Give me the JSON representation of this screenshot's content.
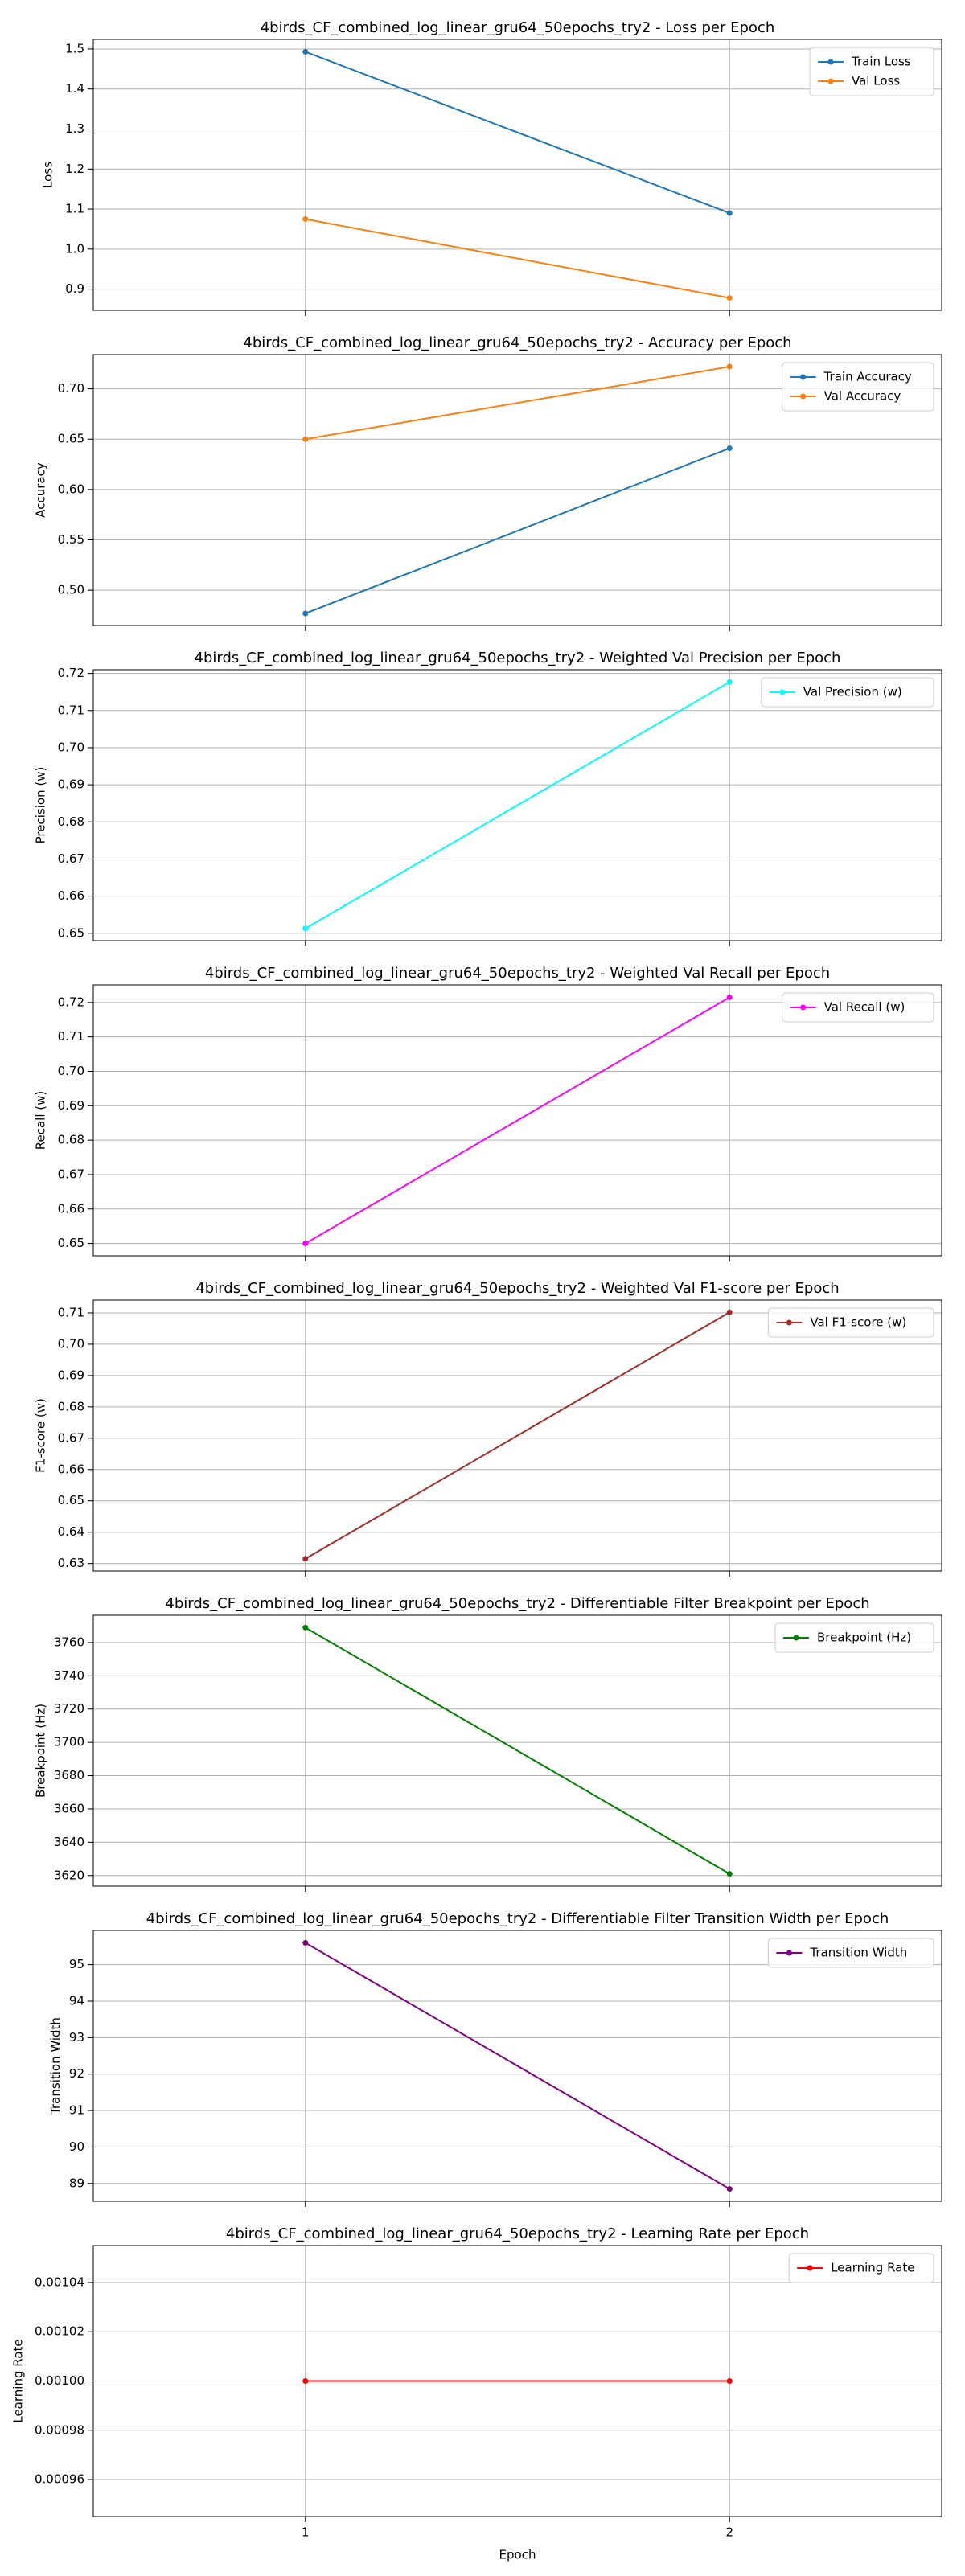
{
  "chart_data": [
    {
      "type": "line",
      "title": "4birds_CF_combined_log_linear_gru64_50epochs_try2 - Loss per Epoch",
      "ylabel": "Loss",
      "x": [
        1,
        2
      ],
      "xlim": [
        0.5,
        2.5
      ],
      "xticks": [
        1,
        2
      ],
      "series": [
        {
          "name": "Train Loss",
          "color": "#1f77b4",
          "values": [
            1.493,
            1.09
          ]
        },
        {
          "name": "Val Loss",
          "color": "#ff7f0e",
          "values": [
            1.075,
            0.878
          ]
        }
      ],
      "ylim": [
        0.847,
        1.524
      ],
      "yticks": [
        0.9,
        {
          "value": 1,
          "label": "1.0"
        },
        1.1,
        1.2,
        1.3,
        1.4,
        1.5
      ],
      "grid": true,
      "legend": "upper right"
    },
    {
      "type": "line",
      "title": "4birds_CF_combined_log_linear_gru64_50epochs_try2 - Accuracy per Epoch",
      "ylabel": "Accuracy",
      "x": [
        1,
        2
      ],
      "xlim": [
        0.5,
        2.5
      ],
      "xticks": [
        1,
        2
      ],
      "series": [
        {
          "name": "Train Accuracy",
          "color": "#1f77b4",
          "values": [
            0.477,
            0.641
          ]
        },
        {
          "name": "Val Accuracy",
          "color": "#ff7f0e",
          "values": [
            0.65,
            0.722
          ]
        }
      ],
      "ylim": [
        0.465,
        0.734
      ],
      "yticks": [
        {
          "value": 0.5,
          "label": "0.50"
        },
        0.55,
        {
          "value": 0.6,
          "label": "0.60"
        },
        0.65,
        {
          "value": 0.7,
          "label": "0.70"
        }
      ],
      "grid": true,
      "legend": "upper right"
    },
    {
      "type": "line",
      "title": "4birds_CF_combined_log_linear_gru64_50epochs_try2 - Weighted Val Precision per Epoch",
      "ylabel": "Precision (w)",
      "x": [
        1,
        2
      ],
      "xlim": [
        0.5,
        2.5
      ],
      "xticks": [
        1,
        2
      ],
      "series": [
        {
          "name": "Val Precision (w)",
          "color": "#00ffff",
          "values": [
            0.6513,
            0.7177
          ]
        }
      ],
      "ylim": [
        0.648,
        0.721
      ],
      "yticks": [
        0.65,
        0.66,
        0.67,
        0.68,
        0.69,
        {
          "value": 0.7,
          "label": "0.70"
        },
        0.71,
        0.72
      ],
      "grid": true,
      "legend": "upper right"
    },
    {
      "type": "line",
      "title": "4birds_CF_combined_log_linear_gru64_50epochs_try2 - Weighted Val Recall per Epoch",
      "ylabel": "Recall (w)",
      "x": [
        1,
        2
      ],
      "xlim": [
        0.5,
        2.5
      ],
      "xticks": [
        1,
        2
      ],
      "series": [
        {
          "name": "Val Recall (w)",
          "color": "#ff00ff",
          "values": [
            0.65,
            0.7215
          ]
        }
      ],
      "ylim": [
        0.6464,
        0.7251
      ],
      "yticks": [
        0.65,
        0.66,
        0.67,
        0.68,
        0.69,
        {
          "value": 0.7,
          "label": "0.70"
        },
        0.71,
        0.72
      ],
      "grid": true,
      "legend": "upper right"
    },
    {
      "type": "line",
      "title": "4birds_CF_combined_log_linear_gru64_50epochs_try2 - Weighted Val F1-score per Epoch",
      "ylabel": "F1-score (w)",
      "x": [
        1,
        2
      ],
      "xlim": [
        0.5,
        2.5
      ],
      "xticks": [
        1,
        2
      ],
      "series": [
        {
          "name": "Val F1-score (w)",
          "color": "#a52a2a",
          "values": [
            0.6315,
            0.7102
          ]
        }
      ],
      "ylim": [
        0.6276,
        0.7141
      ],
      "yticks": [
        0.63,
        0.64,
        0.65,
        0.66,
        0.67,
        0.68,
        0.69,
        {
          "value": 0.7,
          "label": "0.70"
        },
        0.71
      ],
      "grid": true,
      "legend": "upper right"
    },
    {
      "type": "line",
      "title": "4birds_CF_combined_log_linear_gru64_50epochs_try2 - Differentiable Filter Breakpoint per Epoch",
      "ylabel": "Breakpoint (Hz)",
      "x": [
        1,
        2
      ],
      "xlim": [
        0.5,
        2.5
      ],
      "xticks": [
        1,
        2
      ],
      "series": [
        {
          "name": "Breakpoint (Hz)",
          "color": "#008000",
          "values": [
            3769,
            3621
          ]
        }
      ],
      "ylim": [
        3613.6,
        3776.4
      ],
      "yticks": [
        3620,
        3640,
        3660,
        3680,
        3700,
        3720,
        3740,
        3760
      ],
      "grid": true,
      "legend": "upper right"
    },
    {
      "type": "line",
      "title": "4birds_CF_combined_log_linear_gru64_50epochs_try2 - Differentiable Filter Transition Width per Epoch",
      "ylabel": "Transition Width",
      "x": [
        1,
        2
      ],
      "xlim": [
        0.5,
        2.5
      ],
      "xticks": [
        1,
        2
      ],
      "series": [
        {
          "name": "Transition Width",
          "color": "#800080",
          "values": [
            95.6,
            88.85
          ]
        }
      ],
      "ylim": [
        88.51,
        95.94
      ],
      "yticks": [
        89,
        90,
        91,
        92,
        93,
        94,
        95
      ],
      "grid": true,
      "legend": "upper right"
    },
    {
      "type": "line",
      "title": "4birds_CF_combined_log_linear_gru64_50epochs_try2 - Learning Rate per Epoch",
      "ylabel": "Learning Rate",
      "xlabel": "Epoch",
      "x": [
        1,
        2
      ],
      "xlim": [
        0.5,
        2.5
      ],
      "xticks": [
        1,
        2
      ],
      "series": [
        {
          "name": "Learning Rate",
          "color": "#ff0000",
          "values": [
            0.001,
            0.001
          ]
        }
      ],
      "ylim": [
        0.000945,
        0.001055
      ],
      "yticks": [
        0.00096,
        0.00098,
        {
          "value": 0.001,
          "label": "0.00100"
        },
        0.00102,
        0.00104
      ],
      "grid": true,
      "legend": "upper right"
    }
  ]
}
